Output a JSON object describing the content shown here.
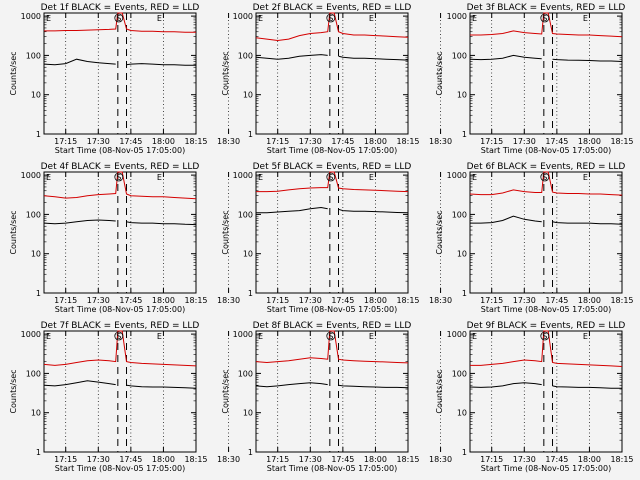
{
  "chart_data": [
    {
      "type": "line",
      "title": "Det 1f BLACK = Events, RED = LLD",
      "xlabel": "Start Time (08-Nov-05 17:05:00)",
      "ylabel": "Counts/sec",
      "x_ticks": [
        "17:15",
        "17:30",
        "17:45",
        "18:00",
        "18:15",
        "18:30"
      ],
      "xlim": [
        0,
        70
      ],
      "y_ticks": [
        "1",
        "10",
        "100",
        "1000"
      ],
      "ylim": [
        1,
        1200
      ],
      "yscale": "log",
      "markers": {
        "start_label": "E",
        "saa_label": "S",
        "end_label": "E"
      },
      "series": [
        {
          "name": "LLD",
          "color": "#d40000",
          "x": [
            0,
            5,
            10,
            15,
            20,
            25,
            30,
            33,
            34,
            36,
            38,
            40,
            45,
            50,
            55,
            60,
            65,
            70
          ],
          "y": [
            420,
            420,
            430,
            430,
            440,
            450,
            460,
            470,
            1200,
            1200,
            470,
            430,
            410,
            410,
            400,
            400,
            390,
            390
          ]
        },
        {
          "name": "Events",
          "color": "#000000",
          "x": [
            0,
            5,
            10,
            15,
            20,
            25,
            30,
            33,
            34,
            36,
            38,
            40,
            45,
            50,
            55,
            60,
            65,
            70
          ],
          "y": [
            60,
            58,
            62,
            80,
            70,
            65,
            62,
            60,
            null,
            null,
            58,
            60,
            62,
            60,
            58,
            58,
            56,
            56
          ]
        }
      ]
    },
    {
      "type": "line",
      "title": "Det 2f BLACK = Events, RED = LLD",
      "xlabel": "Start Time (08-Nov-05 17:05:00)",
      "ylabel": "Counts/sec",
      "x_ticks": [
        "17:15",
        "17:30",
        "17:45",
        "18:00",
        "18:15",
        "18:30"
      ],
      "xlim": [
        0,
        70
      ],
      "y_ticks": [
        "1",
        "10",
        "100",
        "1000"
      ],
      "ylim": [
        1,
        1200
      ],
      "yscale": "log",
      "markers": {
        "start_label": "E",
        "saa_label": "S",
        "end_label": "E"
      },
      "series": [
        {
          "name": "LLD",
          "color": "#d40000",
          "x": [
            0,
            5,
            10,
            15,
            20,
            25,
            30,
            33,
            34,
            36,
            38,
            40,
            45,
            50,
            55,
            60,
            65,
            70
          ],
          "y": [
            280,
            260,
            240,
            260,
            320,
            360,
            380,
            400,
            1200,
            1200,
            400,
            360,
            330,
            330,
            320,
            310,
            300,
            290
          ]
        },
        {
          "name": "Events",
          "color": "#000000",
          "x": [
            0,
            5,
            10,
            15,
            20,
            25,
            30,
            33,
            34,
            36,
            38,
            40,
            45,
            50,
            55,
            60,
            65,
            70
          ],
          "y": [
            90,
            85,
            80,
            85,
            95,
            100,
            105,
            100,
            null,
            null,
            95,
            90,
            85,
            85,
            82,
            80,
            78,
            76
          ]
        }
      ]
    },
    {
      "type": "line",
      "title": "Det 3f BLACK = Events, RED = LLD",
      "xlabel": "Start Time (08-Nov-05 17:05:00)",
      "ylabel": "Counts/sec",
      "x_ticks": [
        "17:15",
        "17:30",
        "17:45",
        "18:00",
        "18:15",
        "18:30"
      ],
      "xlim": [
        0,
        70
      ],
      "y_ticks": [
        "1",
        "10",
        "100",
        "1000"
      ],
      "ylim": [
        1,
        1200
      ],
      "yscale": "log",
      "markers": {
        "start_label": "E",
        "saa_label": "S",
        "end_label": "E"
      },
      "series": [
        {
          "name": "LLD",
          "color": "#d40000",
          "x": [
            0,
            5,
            10,
            15,
            20,
            25,
            30,
            33,
            34,
            36,
            38,
            40,
            45,
            50,
            55,
            60,
            65,
            70
          ],
          "y": [
            330,
            330,
            340,
            360,
            420,
            380,
            360,
            350,
            1200,
            1200,
            360,
            350,
            340,
            330,
            330,
            320,
            310,
            300
          ]
        },
        {
          "name": "Events",
          "color": "#000000",
          "x": [
            0,
            5,
            10,
            15,
            20,
            25,
            30,
            33,
            34,
            36,
            38,
            40,
            45,
            50,
            55,
            60,
            65,
            70
          ],
          "y": [
            80,
            78,
            80,
            85,
            100,
            90,
            85,
            82,
            null,
            null,
            80,
            78,
            76,
            75,
            74,
            72,
            72,
            70
          ]
        }
      ]
    },
    {
      "type": "line",
      "title": "Det 4f BLACK = Events, RED = LLD",
      "xlabel": "Start Time (08-Nov-05 17:05:00)",
      "ylabel": "Counts/sec",
      "x_ticks": [
        "17:15",
        "17:30",
        "17:45",
        "18:00",
        "18:15",
        "18:30"
      ],
      "xlim": [
        0,
        70
      ],
      "y_ticks": [
        "1",
        "10",
        "100",
        "1000"
      ],
      "ylim": [
        1,
        1200
      ],
      "yscale": "log",
      "markers": {
        "start_label": "E",
        "saa_label": "S",
        "end_label": "E"
      },
      "series": [
        {
          "name": "LLD",
          "color": "#d40000",
          "x": [
            0,
            5,
            10,
            15,
            20,
            25,
            30,
            33,
            34,
            36,
            38,
            40,
            45,
            50,
            55,
            60,
            65,
            70
          ],
          "y": [
            300,
            280,
            260,
            270,
            300,
            320,
            330,
            340,
            1200,
            1200,
            330,
            300,
            290,
            280,
            280,
            270,
            260,
            250
          ]
        },
        {
          "name": "Events",
          "color": "#000000",
          "x": [
            0,
            5,
            10,
            15,
            20,
            25,
            30,
            33,
            34,
            36,
            38,
            40,
            45,
            50,
            55,
            60,
            65,
            70
          ],
          "y": [
            60,
            58,
            60,
            65,
            70,
            72,
            70,
            68,
            null,
            null,
            65,
            62,
            60,
            60,
            58,
            58,
            56,
            55
          ]
        }
      ]
    },
    {
      "type": "line",
      "title": "Det 5f BLACK = Events, RED = LLD",
      "xlabel": "Start Time (08-Nov-05 17:05:00)",
      "ylabel": "Counts/sec",
      "x_ticks": [
        "17:15",
        "17:30",
        "17:45",
        "18:00",
        "18:15",
        "18:30"
      ],
      "xlim": [
        0,
        70
      ],
      "y_ticks": [
        "1",
        "10",
        "100",
        "1000"
      ],
      "ylim": [
        1,
        1200
      ],
      "yscale": "log",
      "markers": {
        "start_label": "E",
        "saa_label": "S",
        "end_label": "E"
      },
      "series": [
        {
          "name": "LLD",
          "color": "#d40000",
          "x": [
            0,
            5,
            10,
            15,
            20,
            25,
            30,
            33,
            34,
            36,
            38,
            40,
            45,
            50,
            55,
            60,
            65,
            70
          ],
          "y": [
            380,
            380,
            390,
            420,
            450,
            470,
            480,
            480,
            1200,
            1200,
            470,
            450,
            430,
            420,
            410,
            400,
            390,
            380
          ]
        },
        {
          "name": "Events",
          "color": "#000000",
          "x": [
            0,
            5,
            10,
            15,
            20,
            25,
            30,
            33,
            34,
            36,
            38,
            40,
            45,
            50,
            55,
            60,
            65,
            70
          ],
          "y": [
            110,
            110,
            115,
            120,
            125,
            140,
            150,
            140,
            null,
            null,
            135,
            125,
            120,
            120,
            118,
            115,
            112,
            110
          ]
        }
      ]
    },
    {
      "type": "line",
      "title": "Det 6f BLACK = Events, RED = LLD",
      "xlabel": "Start Time (08-Nov-05 17:05:00)",
      "ylabel": "Counts/sec",
      "x_ticks": [
        "17:15",
        "17:30",
        "17:45",
        "18:00",
        "18:15",
        "18:30"
      ],
      "xlim": [
        0,
        70
      ],
      "y_ticks": [
        "1",
        "10",
        "100",
        "1000"
      ],
      "ylim": [
        1,
        1200
      ],
      "yscale": "log",
      "markers": {
        "start_label": "E",
        "saa_label": "S",
        "end_label": "E"
      },
      "series": [
        {
          "name": "LLD",
          "color": "#d40000",
          "x": [
            0,
            5,
            10,
            15,
            20,
            25,
            30,
            33,
            34,
            36,
            38,
            40,
            45,
            50,
            55,
            60,
            65,
            70
          ],
          "y": [
            330,
            320,
            320,
            350,
            420,
            380,
            360,
            360,
            1200,
            1200,
            370,
            350,
            340,
            340,
            330,
            330,
            320,
            310
          ]
        },
        {
          "name": "Events",
          "color": "#000000",
          "x": [
            0,
            5,
            10,
            15,
            20,
            25,
            30,
            33,
            34,
            36,
            38,
            40,
            45,
            50,
            55,
            60,
            65,
            70
          ],
          "y": [
            60,
            60,
            62,
            70,
            90,
            75,
            68,
            65,
            null,
            null,
            65,
            62,
            60,
            60,
            60,
            58,
            58,
            56
          ]
        }
      ]
    },
    {
      "type": "line",
      "title": "Det 7f BLACK = Events, RED = LLD",
      "xlabel": "Start Time (08-Nov-05 17:05:00)",
      "ylabel": "Counts/sec",
      "x_ticks": [
        "17:15",
        "17:30",
        "17:45",
        "18:00",
        "18:15",
        "18:30"
      ],
      "xlim": [
        0,
        70
      ],
      "y_ticks": [
        "1",
        "10",
        "100",
        "1000"
      ],
      "ylim": [
        1,
        1200
      ],
      "yscale": "log",
      "markers": {
        "start_label": "E",
        "saa_label": "S",
        "end_label": "E"
      },
      "series": [
        {
          "name": "LLD",
          "color": "#d40000",
          "x": [
            0,
            5,
            10,
            15,
            20,
            25,
            30,
            33,
            34,
            36,
            38,
            40,
            45,
            50,
            55,
            60,
            65,
            70
          ],
          "y": [
            170,
            160,
            170,
            190,
            210,
            220,
            210,
            200,
            1200,
            1200,
            200,
            190,
            180,
            175,
            170,
            165,
            160,
            155
          ]
        },
        {
          "name": "Events",
          "color": "#000000",
          "x": [
            0,
            5,
            10,
            15,
            20,
            25,
            30,
            33,
            34,
            36,
            38,
            40,
            45,
            50,
            55,
            60,
            65,
            70
          ],
          "y": [
            50,
            48,
            52,
            58,
            65,
            60,
            55,
            52,
            null,
            null,
            50,
            48,
            46,
            45,
            45,
            44,
            43,
            42
          ]
        }
      ]
    },
    {
      "type": "line",
      "title": "Det 8f BLACK = Events, RED = LLD",
      "xlabel": "Start Time (08-Nov-05 17:05:00)",
      "ylabel": "Counts/sec",
      "x_ticks": [
        "17:15",
        "17:30",
        "17:45",
        "18:00",
        "18:15",
        "18:30"
      ],
      "xlim": [
        0,
        70
      ],
      "y_ticks": [
        "1",
        "10",
        "100",
        "1000"
      ],
      "ylim": [
        1,
        1200
      ],
      "yscale": "log",
      "markers": {
        "start_label": "E",
        "saa_label": "S",
        "end_label": "E"
      },
      "series": [
        {
          "name": "LLD",
          "color": "#d40000",
          "x": [
            0,
            5,
            10,
            15,
            20,
            25,
            30,
            33,
            34,
            36,
            38,
            40,
            45,
            50,
            55,
            60,
            65,
            70
          ],
          "y": [
            200,
            190,
            200,
            210,
            230,
            250,
            240,
            230,
            1200,
            1200,
            230,
            220,
            210,
            205,
            200,
            195,
            190,
            185
          ]
        },
        {
          "name": "Events",
          "color": "#000000",
          "x": [
            0,
            5,
            10,
            15,
            20,
            25,
            30,
            33,
            34,
            36,
            38,
            40,
            45,
            50,
            55,
            60,
            65,
            70
          ],
          "y": [
            48,
            46,
            48,
            52,
            55,
            58,
            55,
            52,
            null,
            null,
            50,
            48,
            47,
            46,
            45,
            44,
            44,
            43
          ]
        }
      ]
    },
    {
      "type": "line",
      "title": "Det 9f BLACK = Events, RED = LLD",
      "xlabel": "Start Time (08-Nov-05 17:05:00)",
      "ylabel": "Counts/sec",
      "x_ticks": [
        "17:15",
        "17:30",
        "17:45",
        "18:00",
        "18:15",
        "18:30"
      ],
      "xlim": [
        0,
        70
      ],
      "y_ticks": [
        "1",
        "10",
        "100",
        "1000"
      ],
      "ylim": [
        1,
        1200
      ],
      "yscale": "log",
      "markers": {
        "start_label": "E",
        "saa_label": "S",
        "end_label": "E"
      },
      "series": [
        {
          "name": "LLD",
          "color": "#d40000",
          "x": [
            0,
            5,
            10,
            15,
            20,
            25,
            30,
            33,
            34,
            36,
            38,
            40,
            45,
            50,
            55,
            60,
            65,
            70
          ],
          "y": [
            160,
            160,
            170,
            180,
            200,
            220,
            210,
            200,
            1200,
            1200,
            190,
            180,
            175,
            170,
            165,
            160,
            155,
            150
          ]
        },
        {
          "name": "Events",
          "color": "#000000",
          "x": [
            0,
            5,
            10,
            15,
            20,
            25,
            30,
            33,
            34,
            36,
            38,
            40,
            45,
            50,
            55,
            60,
            65,
            70
          ],
          "y": [
            45,
            44,
            45,
            48,
            55,
            58,
            55,
            52,
            null,
            null,
            48,
            46,
            45,
            44,
            44,
            43,
            42,
            42
          ]
        }
      ]
    }
  ]
}
